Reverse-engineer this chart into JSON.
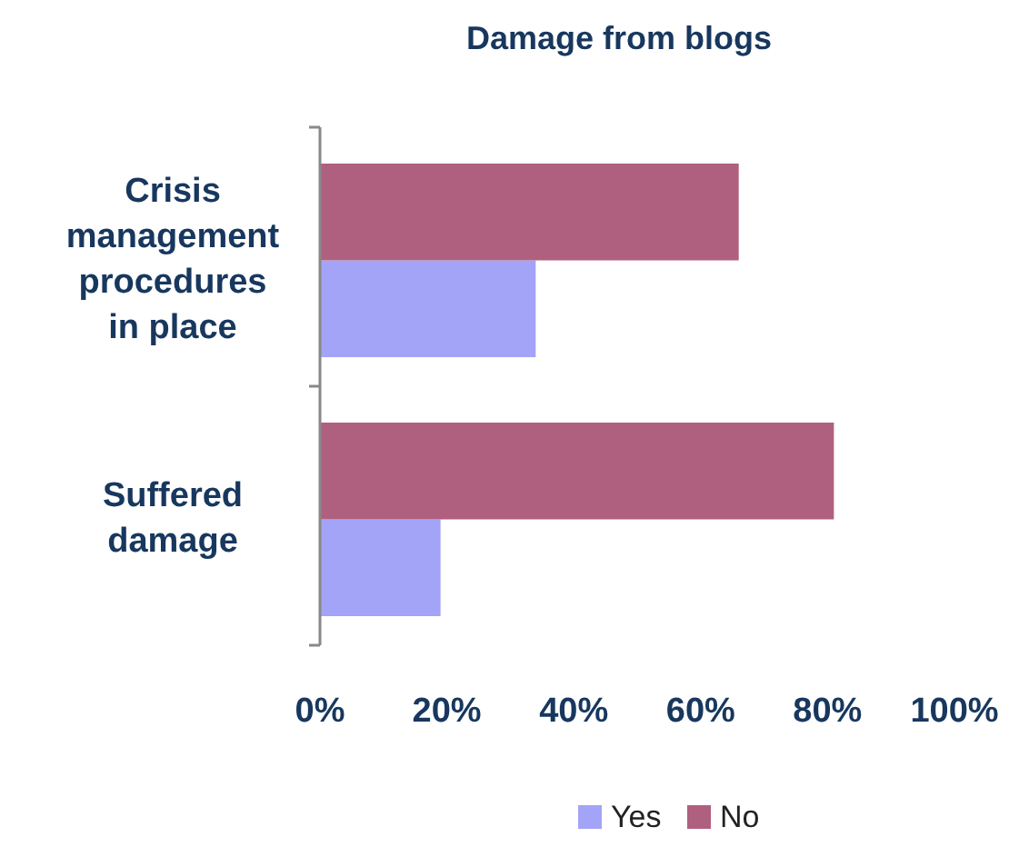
{
  "chart_data": {
    "type": "bar",
    "orientation": "horizontal",
    "title": "Damage from blogs",
    "categories": [
      "Crisis management procedures in place",
      "Suffered damage"
    ],
    "series": [
      {
        "name": "Yes",
        "color": "#a3a3f7",
        "values": [
          34,
          19
        ]
      },
      {
        "name": "No",
        "color": "#b0607f",
        "values": [
          66,
          81
        ]
      }
    ],
    "xlim": [
      0,
      100
    ],
    "xticks": [
      {
        "value": 0,
        "label": "0%"
      },
      {
        "value": 20,
        "label": "20%"
      },
      {
        "value": 40,
        "label": "40%"
      },
      {
        "value": 60,
        "label": "60%"
      },
      {
        "value": 80,
        "label": "80%"
      },
      {
        "value": 100,
        "label": "100%"
      }
    ],
    "legend": "bottom",
    "grid": false
  }
}
